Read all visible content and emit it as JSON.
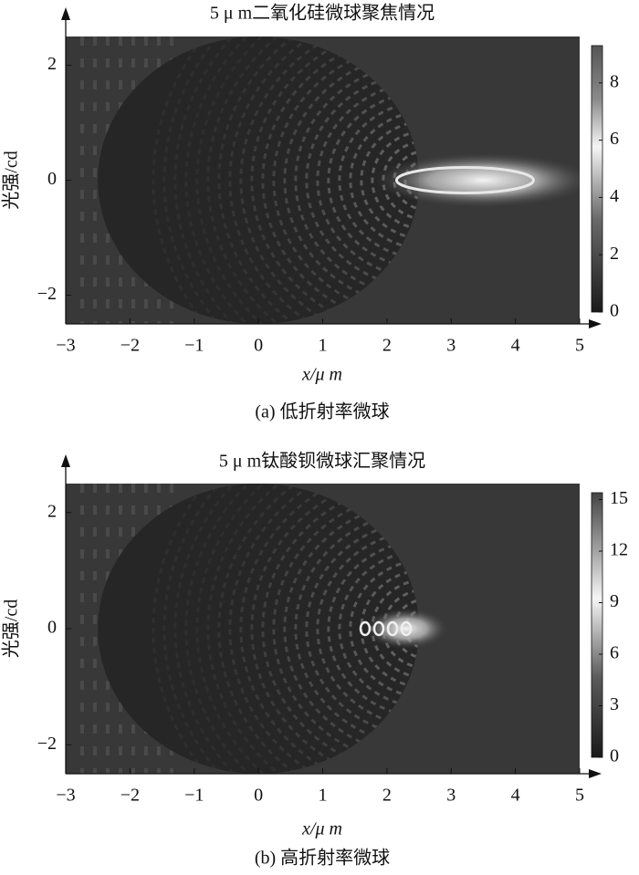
{
  "chart_data": [
    {
      "type": "heatmap",
      "title": "5 μ m二氧化硅微球聚焦情况",
      "xlabel": "x/μ m",
      "ylabel": "光强/cd",
      "caption": "(a) 低折射率微球",
      "xlim": [
        -3,
        5
      ],
      "xticks": [
        {
          "value": -3,
          "label": "−3"
        },
        {
          "value": -2,
          "label": "−2"
        },
        {
          "value": -1,
          "label": "−1"
        },
        0,
        1,
        2,
        3,
        4,
        5
      ],
      "ylim": [
        -2.5,
        2.5
      ],
      "yticks": [
        {
          "value": -2,
          "label": "−2"
        },
        0,
        2
      ],
      "clim": [
        0,
        9.3
      ],
      "cticks": [
        0,
        2,
        4,
        6,
        8
      ],
      "focus_x": 3.5
    },
    {
      "type": "heatmap",
      "title": "5 μ m钛酸钡微球汇聚情况",
      "xlabel": "x/μ m",
      "ylabel": "光强/cd",
      "caption": "(b) 高折射率微球",
      "xlim": [
        -3,
        5
      ],
      "xticks": [
        {
          "value": -3,
          "label": "−3"
        },
        {
          "value": -2,
          "label": "−2"
        },
        {
          "value": -1,
          "label": "−1"
        },
        0,
        1,
        2,
        3,
        4,
        5
      ],
      "ylim": [
        -2.5,
        2.5
      ],
      "yticks": [
        {
          "value": -2,
          "label": "−2"
        },
        0,
        2
      ],
      "clim": [
        0,
        15.4
      ],
      "cticks": [
        0,
        3,
        6,
        9,
        12,
        15
      ],
      "focus_x": 2.3
    }
  ]
}
